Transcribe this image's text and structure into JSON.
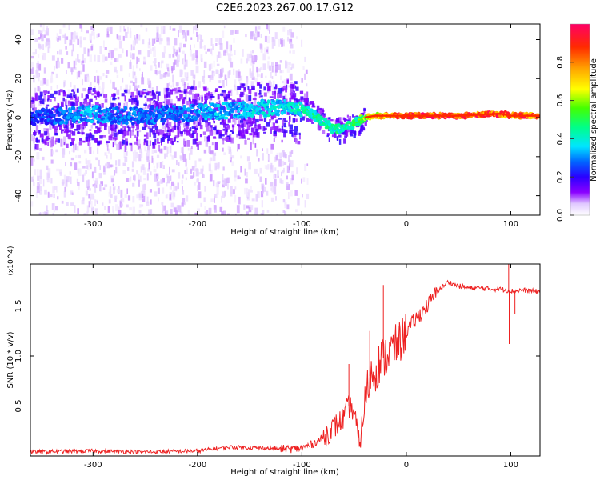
{
  "title": "C2E6.2023.267.00.17.G12",
  "chart_data": [
    {
      "type": "heatmap",
      "xlabel": "Height of straight line (km)",
      "ylabel": "Frequency (Hz)",
      "xlim": [
        -360,
        128
      ],
      "ylim": [
        -50,
        48
      ],
      "x_ticks": [
        -300,
        -200,
        -100,
        0,
        100
      ],
      "y_ticks": [
        -40,
        -20,
        0,
        20,
        40
      ],
      "colorbar": {
        "label": "Normalized spectral amplitude",
        "range": [
          0,
          1
        ],
        "ticks": [
          "0.0",
          "0.2",
          "0.4",
          "0.6",
          "0.8"
        ],
        "colors": [
          "#ffffff",
          "#d9b3ff",
          "#8a00ff",
          "#2a00ff",
          "#0066ff",
          "#00e5ff",
          "#00ff66",
          "#66ff00",
          "#ffff00",
          "#ffa500",
          "#ff2a00",
          "#ff0066"
        ]
      },
      "ridge": {
        "x": [
          -355,
          -330,
          -305,
          -280,
          -250,
          -220,
          -190,
          -160,
          -130,
          -110,
          -95,
          -80,
          -70,
          -60,
          -50,
          -40,
          -30,
          -20,
          -10,
          0,
          50,
          90,
          100,
          128
        ],
        "y": [
          0,
          1,
          2,
          1,
          1,
          2,
          3,
          4,
          5,
          6,
          4,
          -2,
          -6,
          -5,
          -3,
          0,
          1,
          1,
          1,
          1,
          1,
          2,
          1,
          1
        ],
        "amplitude": [
          0.25,
          0.3,
          0.35,
          0.3,
          0.3,
          0.3,
          0.35,
          0.35,
          0.4,
          0.4,
          0.45,
          0.45,
          0.45,
          0.45,
          0.5,
          0.6,
          0.75,
          0.85,
          0.9,
          0.95,
          0.95,
          0.9,
          0.9,
          0.9
        ]
      }
    },
    {
      "type": "line",
      "xlabel": "Height of straight line (km)",
      "ylabel": "SNR (10 * v/v)",
      "y_multiplier": "(x10^4)",
      "xlim": [
        -360,
        128
      ],
      "ylim": [
        0,
        1.92
      ],
      "x_ticks": [
        -300,
        -200,
        -100,
        0,
        100
      ],
      "y_ticks": [
        0.5,
        1.0,
        1.5
      ],
      "y_tick_labels": [
        "0.5",
        "1.0",
        "1.5"
      ],
      "color": "#ee2222",
      "series": [
        {
          "x": [
            -360,
            -300,
            -250,
            -200,
            -170,
            -140,
            -110,
            -100,
            -90,
            -80,
            -70,
            -60,
            -55,
            -50,
            -45,
            -40,
            -35,
            -30,
            -25,
            -20,
            -15,
            -10,
            -5,
            0,
            10,
            20,
            30,
            40,
            50,
            60,
            70,
            80,
            90,
            95,
            100,
            105,
            110,
            120,
            128
          ],
          "y": [
            0.04,
            0.05,
            0.04,
            0.05,
            0.09,
            0.08,
            0.07,
            0.08,
            0.12,
            0.18,
            0.28,
            0.38,
            0.5,
            0.45,
            0.1,
            0.5,
            0.8,
            0.85,
            0.95,
            1.0,
            1.05,
            1.1,
            1.15,
            1.25,
            1.38,
            1.5,
            1.65,
            1.74,
            1.7,
            1.68,
            1.68,
            1.67,
            1.67,
            1.66,
            1.65,
            1.65,
            1.66,
            1.65,
            1.64
          ],
          "spikes": [
            {
              "x": -55,
              "y": 0.92
            },
            {
              "x": -22,
              "y": 1.71
            },
            {
              "x": -35,
              "y": 1.25
            },
            {
              "x": 98,
              "y": 1.95
            },
            {
              "x": 98.5,
              "y": 1.12
            },
            {
              "x": 104,
              "y": 1.42
            }
          ]
        }
      ]
    }
  ]
}
